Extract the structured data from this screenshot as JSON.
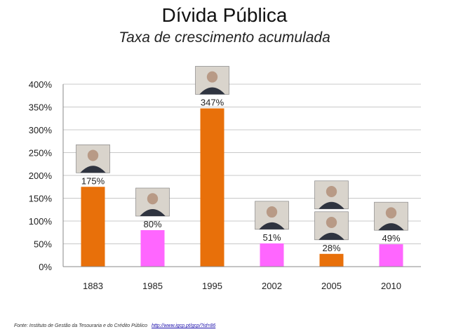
{
  "chart_data": {
    "type": "bar",
    "title": "Dívida Pública",
    "subtitle": "Taxa de crescimento acumulada",
    "categories": [
      "1883",
      "1985",
      "1995",
      "2002",
      "2005",
      "2010"
    ],
    "values": [
      175,
      80,
      347,
      51,
      28,
      49
    ],
    "value_labels": [
      "175%",
      "80%",
      "347%",
      "51%",
      "28%",
      "49%"
    ],
    "bar_colors": [
      "#e8700a",
      "#ff66ff",
      "#e8700a",
      "#ff66ff",
      "#e8700a",
      "#ff66ff"
    ],
    "portraits_per_bar": [
      1,
      1,
      1,
      1,
      2,
      1
    ],
    "ylim": [
      0,
      400
    ],
    "yticks": [
      0,
      50,
      100,
      150,
      200,
      250,
      300,
      350,
      400
    ],
    "ytick_labels": [
      "0%",
      "50%",
      "100%",
      "150%",
      "200%",
      "250%",
      "300%",
      "350%",
      "400%"
    ],
    "xlabel": "",
    "ylabel": "",
    "grid": true,
    "legend": "none"
  },
  "source": {
    "text": "Fonte: Instituto de Gestão da Tesouraria e do Crédito Público",
    "link": "http://www.igcp.pt/gcp/?id=86"
  },
  "colors": {
    "orange": "#e8700a",
    "pink": "#ff66ff",
    "grid": "#c8c8c8",
    "axis": "#888888"
  }
}
